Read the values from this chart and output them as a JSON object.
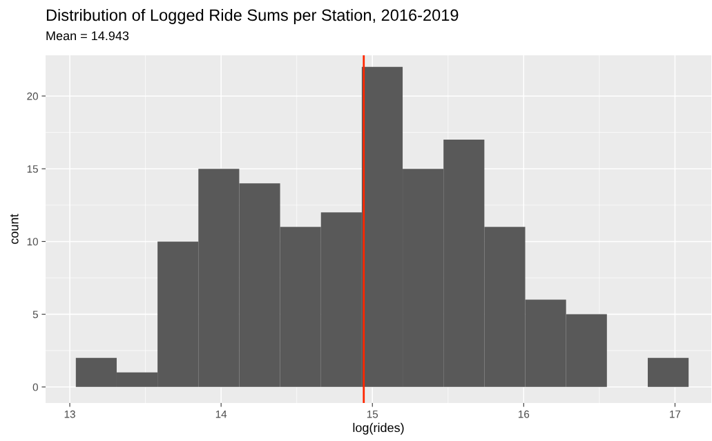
{
  "chart_data": {
    "type": "histogram",
    "title": "Distribution of Logged Ride Sums per Station, 2016-2019",
    "subtitle": "Mean = 14.943",
    "xlabel": "log(rides)",
    "ylabel": "count",
    "bins": [
      13.04,
      13.31,
      13.58,
      13.85,
      14.12,
      14.39,
      14.66,
      14.93,
      15.2,
      15.47,
      15.74,
      16.01,
      16.28,
      16.55,
      16.82,
      17.09
    ],
    "values": [
      2,
      1,
      10,
      15,
      14,
      11,
      12,
      22,
      15,
      17,
      11,
      6,
      5,
      0,
      2
    ],
    "color": "#595959",
    "xlim": [
      12.84,
      17.24
    ],
    "ylim": [
      -1.1,
      22.8
    ],
    "xticks": [
      13,
      14,
      15,
      16,
      17
    ],
    "yticks": [
      0,
      5,
      10,
      15,
      20
    ],
    "ref_lines": [
      {
        "axis": "x",
        "value": 14.943,
        "color": "#ff2600"
      }
    ],
    "grid": true
  }
}
